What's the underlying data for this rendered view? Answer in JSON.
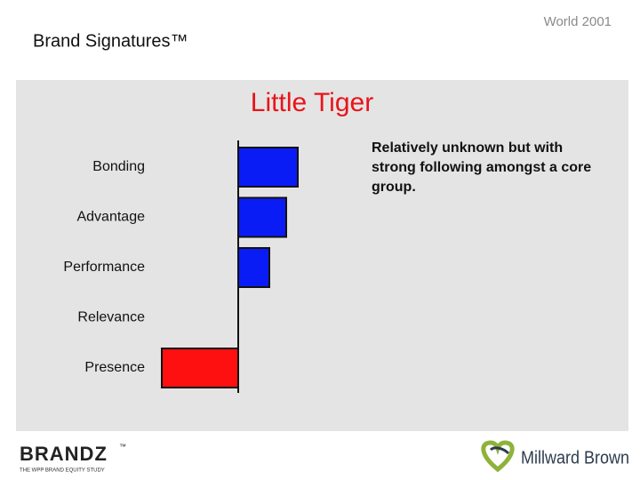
{
  "header": {
    "subtitle": "World 2001",
    "title": "Brand Signatures™"
  },
  "chart_data": {
    "type": "bar",
    "orientation": "horizontal",
    "title": "Little Tiger",
    "annotation": [
      "Relatively unknown but with",
      "strong following amongst a core",
      "group."
    ],
    "categories": [
      "Bonding",
      "Advantage",
      "Performance",
      "Relevance",
      "Presence"
    ],
    "values": [
      67,
      54,
      35,
      0,
      -86
    ],
    "colors": [
      "#0a1cf5",
      "#0a1cf5",
      "#0a1cf5",
      "#0a1cf5",
      "#ff1010"
    ],
    "xlim": [
      -100,
      100
    ]
  },
  "footer": {
    "brandz": "BRANDZ",
    "brandz_tm": "™",
    "tagline": "THE WPP BRAND EQUITY STUDY",
    "company": "Millward Brown"
  }
}
